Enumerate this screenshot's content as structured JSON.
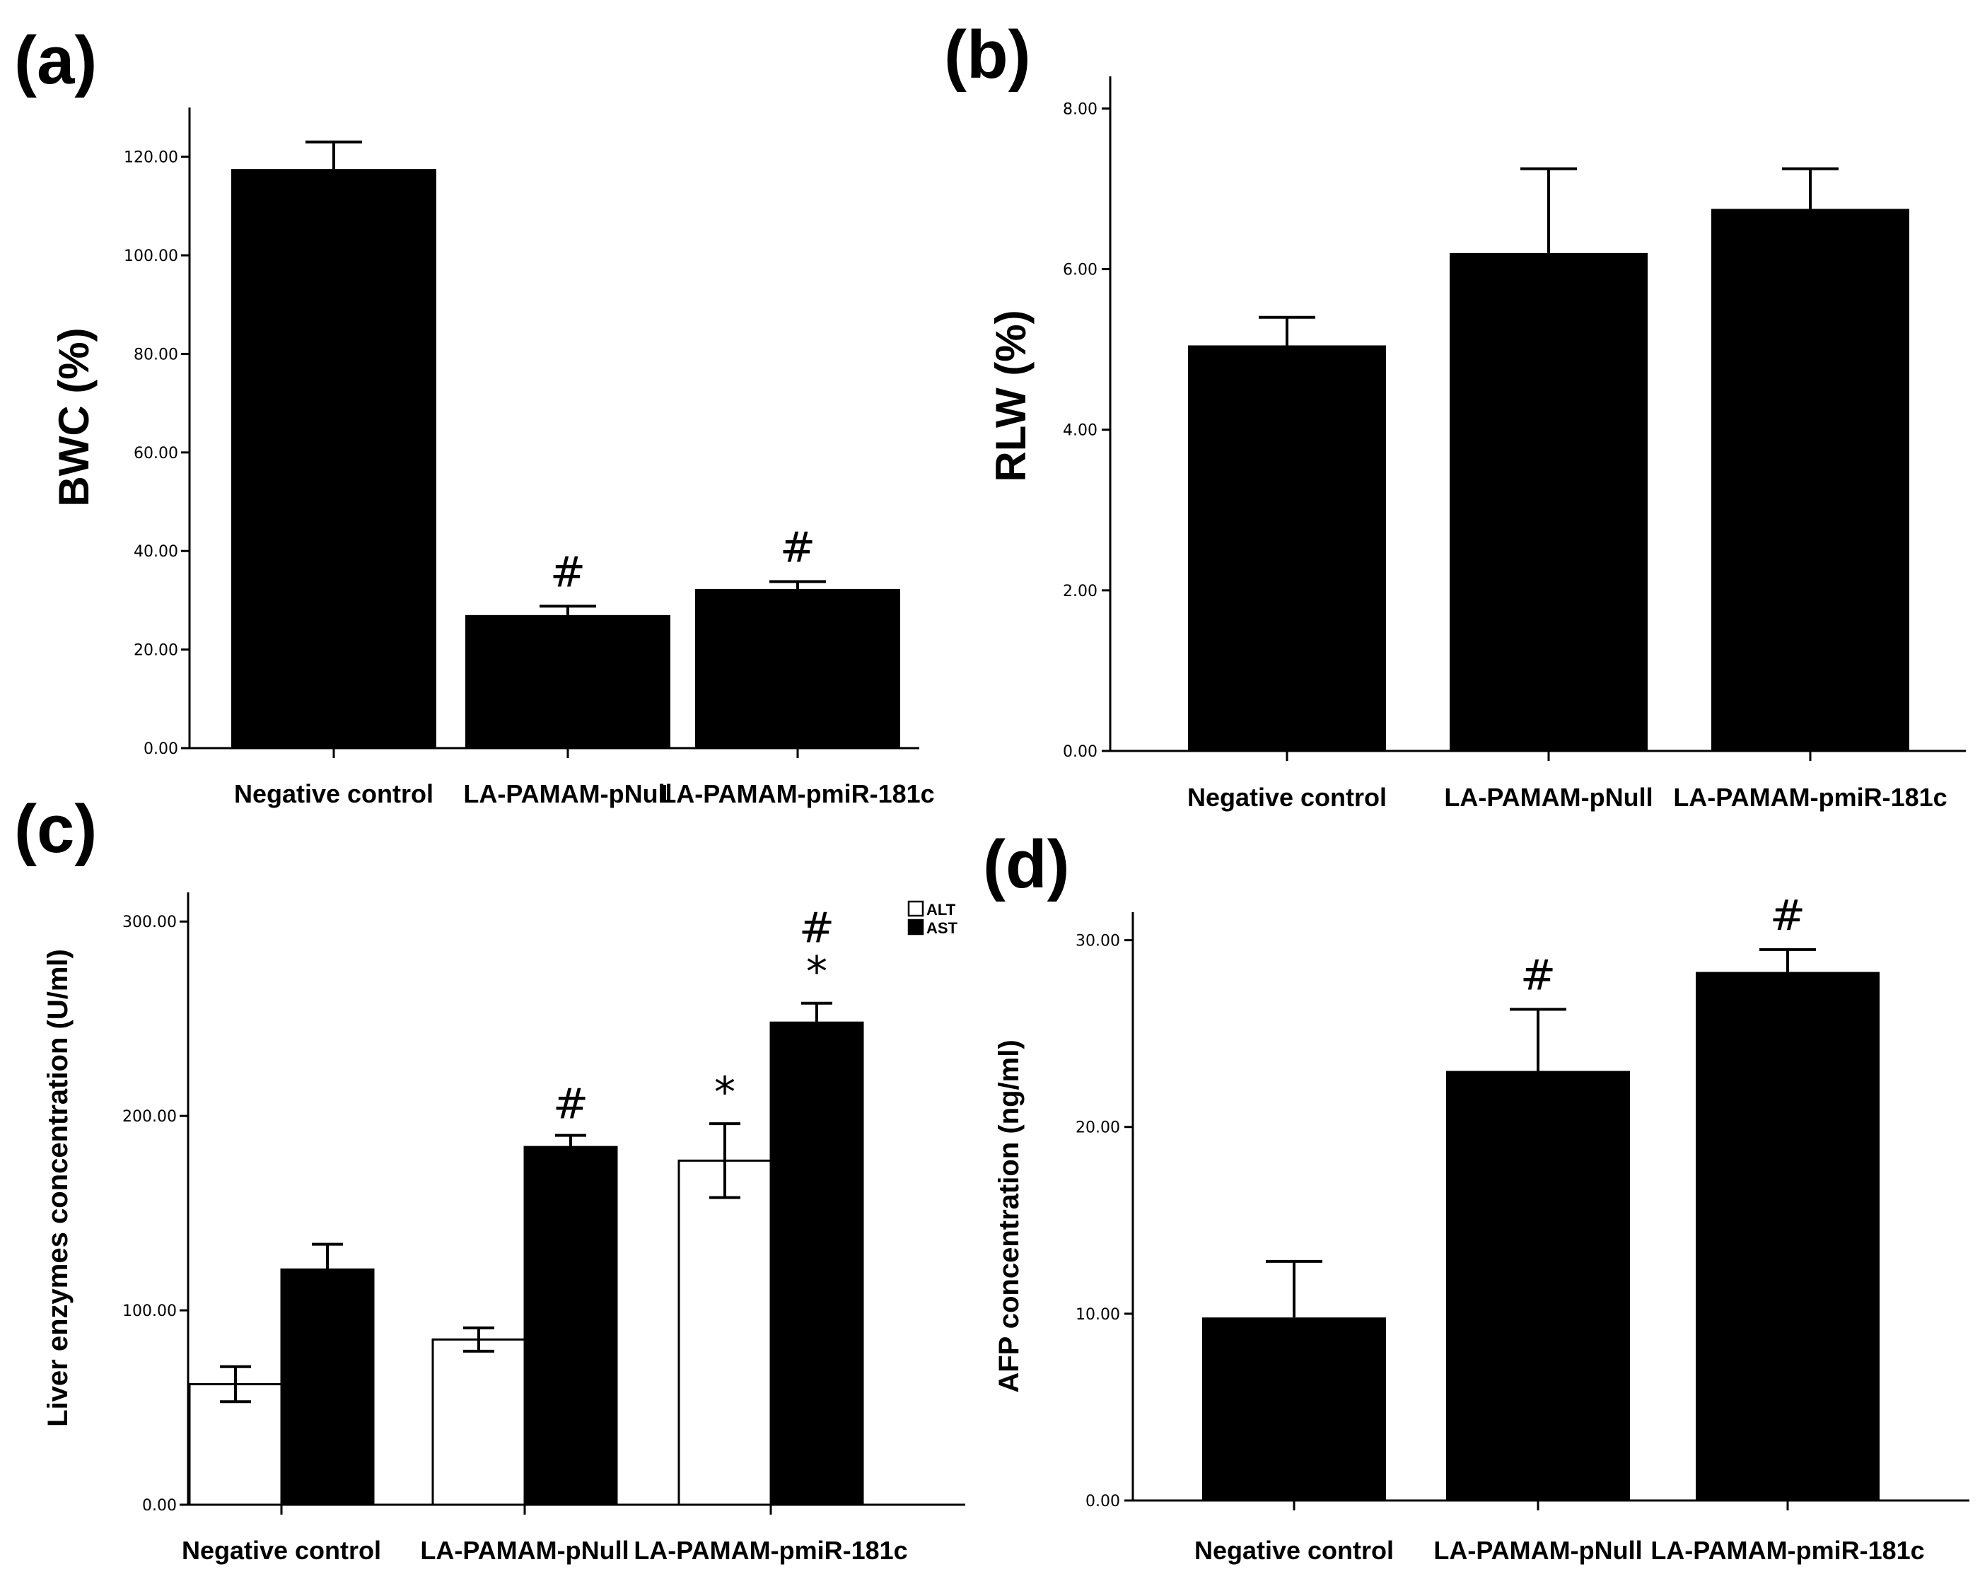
{
  "chart_data": [
    {
      "panel": "(a)",
      "type": "bar",
      "categories": [
        "Negative control",
        "LA-PAMAM-pNull",
        "LA-PAMAM-pmiR-181c"
      ],
      "values": [
        117.5,
        27.0,
        32.3
      ],
      "errors": [
        5.5,
        1.8,
        1.5
      ],
      "annotations": [
        "",
        "#",
        "#"
      ],
      "ylabel": "BWC (%)",
      "ylim": [
        0,
        130
      ],
      "yticks": [
        0,
        20,
        40,
        60,
        80,
        100,
        120
      ],
      "ytick_labels": [
        "0.00",
        "20.00",
        "40.00",
        "60.00",
        "80.00",
        "100.00",
        "120.00"
      ]
    },
    {
      "panel": "(b)",
      "type": "bar",
      "categories": [
        "Negative control",
        "LA-PAMAM-pNull",
        "LA-PAMAM-pmiR-181c"
      ],
      "values": [
        5.05,
        6.2,
        6.75
      ],
      "errors": [
        0.35,
        1.05,
        0.5
      ],
      "annotations": [
        "",
        "",
        ""
      ],
      "ylabel": "RLW (%)",
      "ylim": [
        0,
        8.4
      ],
      "yticks": [
        0,
        2,
        4,
        6,
        8
      ],
      "ytick_labels": [
        "0.00",
        "2.00",
        "4.00",
        "6.00",
        "8.00"
      ]
    },
    {
      "panel": "(c)",
      "type": "bar",
      "categories": [
        "Negative control",
        "LA-PAMAM-pNull",
        "LA-PAMAM-pmiR-181c"
      ],
      "series": [
        {
          "name": "ALT",
          "color": "#ffffff",
          "values": [
            62,
            85,
            177
          ],
          "errors": [
            9,
            6,
            19
          ],
          "annotations": [
            "",
            "",
            "*"
          ]
        },
        {
          "name": "AST",
          "color": "#000000",
          "values": [
            121,
            184,
            248
          ],
          "errors": [
            13,
            6,
            10
          ],
          "annotations": [
            "",
            "#",
            "#\n*"
          ]
        }
      ],
      "ylabel": "Liver enzymes concentration (U/ml)",
      "ylim": [
        0,
        315
      ],
      "yticks": [
        0,
        100,
        200,
        300
      ],
      "ytick_labels": [
        "0.00",
        "100.00",
        "200.00",
        "300.00"
      ],
      "legend": {
        "position": "top-right",
        "entries": [
          "ALT",
          "AST"
        ]
      }
    },
    {
      "panel": "(d)",
      "type": "bar",
      "categories": [
        "Negative control",
        "LA-PAMAM-pNull",
        "LA-PAMAM-pmiR-181c"
      ],
      "values": [
        9.8,
        23.0,
        28.3
      ],
      "errors": [
        3.0,
        3.3,
        1.2
      ],
      "annotations": [
        "",
        "#",
        "#"
      ],
      "ylabel": "AFP concentration (ng/ml)",
      "ylim": [
        0,
        31.5
      ],
      "yticks": [
        0,
        10,
        20,
        30
      ],
      "ytick_labels": [
        "0.00",
        "10.00",
        "20.00",
        "30.00"
      ]
    }
  ]
}
